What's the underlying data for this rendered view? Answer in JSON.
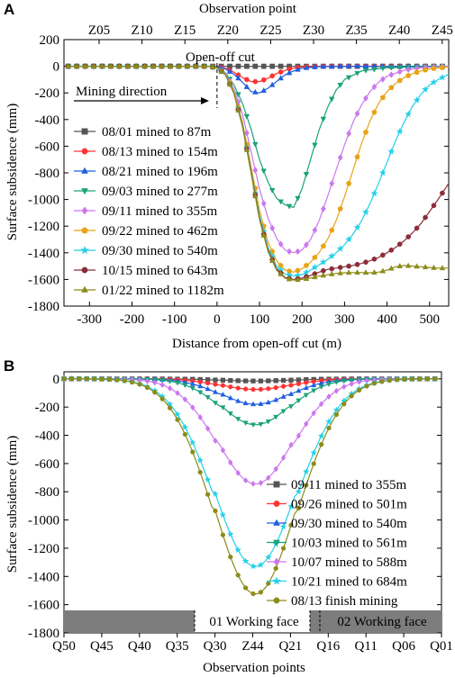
{
  "colors": {
    "s1": "#555555",
    "s2": "#FF3333",
    "s3": "#1F5FE0",
    "s4": "#1AA27A",
    "s5": "#CC77EE",
    "s6": "#E8A317",
    "s7": "#22D0E8",
    "s8": "#8B2E3A",
    "s9": "#8C8C1A"
  },
  "chart_data": [
    {
      "panel": "A",
      "type": "line",
      "top_axis_label": "Observation point",
      "top_ticks": [
        "Z05",
        "Z10",
        "Z15",
        "Z20",
        "Z25",
        "Z30",
        "Z35",
        "Z40",
        "Z45"
      ],
      "xlabel": "Distance from open-off cut (m)",
      "ylabel": "Surface subsidence (mm)",
      "xlim": [
        -360,
        545
      ],
      "ylim": [
        -1800,
        200
      ],
      "xticks": [
        -300,
        -200,
        -100,
        0,
        100,
        200,
        300,
        400,
        500
      ],
      "yticks": [
        200,
        0,
        -200,
        -400,
        -600,
        -800,
        -1000,
        -1200,
        -1400,
        -1600,
        -1800
      ],
      "annotations": {
        "open_off_cut": "Open-off cut",
        "mining_direction": "Mining direction"
      },
      "legend_position": "left",
      "series": [
        {
          "name": "08/01 mined to 87m",
          "marker": "square",
          "color": "#555555",
          "x": [
            -350,
            0,
            150,
            300,
            545
          ],
          "y": [
            0,
            0,
            0,
            0,
            0
          ]
        },
        {
          "name": "08/13 mined to 154m",
          "marker": "circle",
          "color": "#FF3333",
          "x": [
            -350,
            -20,
            0,
            20,
            40,
            60,
            80,
            100,
            120,
            140,
            170,
            200,
            260,
            545
          ],
          "y": [
            0,
            0,
            -3,
            -15,
            -45,
            -85,
            -115,
            -115,
            -90,
            -55,
            -20,
            -5,
            0,
            0
          ]
        },
        {
          "name": "08/21 mined to 196m",
          "marker": "triangle-up",
          "color": "#1F5FE0",
          "x": [
            -350,
            -20,
            0,
            20,
            40,
            60,
            80,
            100,
            120,
            140,
            160,
            180,
            200,
            240,
            300,
            545
          ],
          "y": [
            0,
            0,
            -5,
            -20,
            -60,
            -120,
            -190,
            -200,
            -165,
            -115,
            -65,
            -35,
            -15,
            -3,
            0,
            0
          ]
        },
        {
          "name": "09/03 mined to 277m",
          "marker": "triangle-down",
          "color": "#1AA27A",
          "x": [
            -350,
            -20,
            0,
            20,
            40,
            60,
            80,
            100,
            120,
            140,
            160,
            180,
            200,
            220,
            240,
            260,
            280,
            300,
            340,
            400,
            545
          ],
          "y": [
            0,
            0,
            -10,
            -50,
            -140,
            -280,
            -470,
            -700,
            -870,
            -990,
            -1040,
            -1060,
            -920,
            -700,
            -480,
            -310,
            -180,
            -100,
            -35,
            -10,
            0
          ]
        },
        {
          "name": "09/11 mined to 355m",
          "marker": "diamond",
          "color": "#CC77EE",
          "x": [
            -350,
            -20,
            0,
            20,
            40,
            60,
            80,
            100,
            120,
            140,
            160,
            180,
            200,
            220,
            240,
            260,
            280,
            300,
            320,
            340,
            360,
            380,
            400,
            440,
            480,
            545
          ],
          "y": [
            0,
            0,
            -10,
            -55,
            -170,
            -360,
            -640,
            -920,
            -1140,
            -1290,
            -1380,
            -1400,
            -1380,
            -1300,
            -1160,
            -980,
            -780,
            -590,
            -420,
            -290,
            -190,
            -120,
            -75,
            -30,
            -10,
            0
          ]
        },
        {
          "name": "09/22 mined to 462m",
          "marker": "pentagon",
          "color": "#E8A317",
          "x": [
            -350,
            -20,
            0,
            20,
            40,
            60,
            80,
            100,
            120,
            140,
            160,
            180,
            200,
            220,
            240,
            260,
            280,
            300,
            320,
            340,
            360,
            380,
            400,
            420,
            440,
            460,
            480,
            500,
            545
          ],
          "y": [
            0,
            0,
            -12,
            -60,
            -190,
            -420,
            -750,
            -1080,
            -1320,
            -1460,
            -1530,
            -1545,
            -1520,
            -1470,
            -1400,
            -1300,
            -1160,
            -980,
            -780,
            -580,
            -410,
            -280,
            -190,
            -130,
            -85,
            -55,
            -35,
            -20,
            -5
          ]
        },
        {
          "name": "09/30 mined to 540m",
          "marker": "star",
          "color": "#22D0E8",
          "x": [
            -350,
            -20,
            0,
            20,
            40,
            60,
            80,
            100,
            120,
            140,
            160,
            180,
            200,
            220,
            240,
            260,
            280,
            300,
            320,
            340,
            360,
            380,
            400,
            420,
            440,
            460,
            480,
            500,
            520,
            545
          ],
          "y": [
            0,
            0,
            -12,
            -65,
            -200,
            -440,
            -780,
            -1120,
            -1360,
            -1500,
            -1560,
            -1575,
            -1565,
            -1530,
            -1490,
            -1450,
            -1400,
            -1340,
            -1260,
            -1160,
            -1030,
            -880,
            -720,
            -560,
            -420,
            -300,
            -210,
            -140,
            -100,
            -60
          ]
        },
        {
          "name": "10/15 mined to 643m",
          "marker": "circle",
          "color": "#8B2E3A",
          "x": [
            -350,
            -20,
            0,
            20,
            40,
            60,
            80,
            100,
            120,
            140,
            160,
            180,
            200,
            220,
            240,
            260,
            280,
            300,
            320,
            340,
            360,
            380,
            400,
            420,
            440,
            460,
            480,
            500,
            520,
            545
          ],
          "y": [
            0,
            0,
            -12,
            -65,
            -205,
            -450,
            -790,
            -1140,
            -1380,
            -1520,
            -1585,
            -1600,
            -1590,
            -1570,
            -1545,
            -1525,
            -1515,
            -1505,
            -1495,
            -1480,
            -1460,
            -1435,
            -1400,
            -1360,
            -1310,
            -1250,
            -1180,
            -1090,
            -1000,
            -880
          ]
        },
        {
          "name": "01/22 mined to 1182m",
          "marker": "triangle-up",
          "color": "#8C8C1A",
          "x": [
            -350,
            -20,
            0,
            20,
            40,
            60,
            80,
            100,
            120,
            140,
            160,
            180,
            200,
            220,
            240,
            260,
            280,
            300,
            320,
            340,
            360,
            380,
            400,
            420,
            440,
            460,
            480,
            500,
            520,
            545
          ],
          "y": [
            0,
            0,
            -12,
            -65,
            -205,
            -455,
            -800,
            -1150,
            -1390,
            -1530,
            -1590,
            -1605,
            -1600,
            -1590,
            -1575,
            -1565,
            -1555,
            -1550,
            -1548,
            -1548,
            -1550,
            -1545,
            -1530,
            -1505,
            -1495,
            -1500,
            -1505,
            -1510,
            -1515,
            -1515
          ]
        }
      ]
    },
    {
      "panel": "B",
      "type": "line",
      "xlabel": "Observation points",
      "ylabel": "Surface subsidence (mm)",
      "ylim": [
        -1800,
        50
      ],
      "xticks": [
        "Q50",
        "Q45",
        "Q40",
        "Q35",
        "Q30",
        "Z44",
        "Q21",
        "Q16",
        "Q11",
        "Q06",
        "Q01"
      ],
      "yticks": [
        0,
        -200,
        -400,
        -600,
        -800,
        -1000,
        -1200,
        -1400,
        -1600,
        -1800
      ],
      "working_faces": [
        "01 Working face",
        "02 Working face"
      ],
      "legend_position": "right",
      "series": [
        {
          "name": "09/11 mined to 355m",
          "marker": "square",
          "color": "#555555",
          "peak": -15
        },
        {
          "name": "09/26 mined to 501m",
          "marker": "circle",
          "color": "#FF3333",
          "peak": -75
        },
        {
          "name": "09/30 mined to 540m",
          "marker": "triangle-up",
          "color": "#1F5FE0",
          "peak": -180
        },
        {
          "name": "10/03 mined to 561m",
          "marker": "triangle-down",
          "color": "#1AA27A",
          "peak": -325
        },
        {
          "name": "10/07 mined to 588m",
          "marker": "diamond",
          "color": "#CC77EE",
          "peak": -745
        },
        {
          "name": "10/21 mined to 684m",
          "marker": "star",
          "color": "#22D0E8",
          "peak": -1330
        },
        {
          "name": "08/13 finish mining",
          "marker": "circle",
          "color": "#8C8C1A",
          "peak": -1525
        }
      ]
    }
  ]
}
